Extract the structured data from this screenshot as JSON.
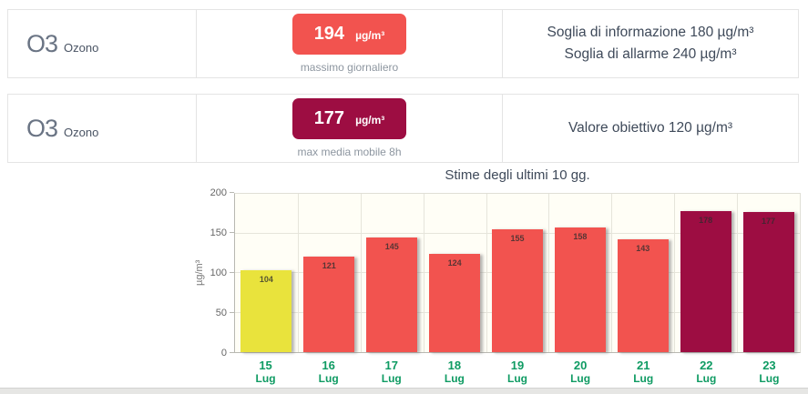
{
  "colors": {
    "red": "#f2534f",
    "dark_red": "#9d0d42",
    "yellow": "#e9e33c",
    "green": "#0f9b63",
    "text_dark": "#3f4a5a",
    "text_muted": "#8d96a0",
    "border": "#e4e4e4",
    "plot_bg": "#fffef6"
  },
  "cards": [
    {
      "pollutant": "O3",
      "name": "Ozono",
      "value": "194",
      "unit": "µg/m³",
      "caption": "massimo giornaliero",
      "badge_color": "#f2534f",
      "thresholds": [
        "Soglia di informazione 180 µg/m³",
        "Soglia di allarme 240 µg/m³"
      ]
    },
    {
      "pollutant": "O3",
      "name": "Ozono",
      "value": "177",
      "unit": "µg/m³",
      "caption": "max media mobile 8h",
      "badge_color": "#9d0d42",
      "thresholds": [
        "Valore obiettivo 120 µg/m³"
      ]
    }
  ],
  "chart_data": {
    "type": "bar",
    "title": "Stime degli ultimi 10 gg.",
    "xlabel": "",
    "ylabel": "µg/m³",
    "ylim": [
      0,
      200
    ],
    "yticks": [
      0,
      50,
      100,
      150,
      200
    ],
    "grid": true,
    "legend": false,
    "categories": [
      "15 Lug",
      "16 Lug",
      "17 Lug",
      "18 Lug",
      "19 Lug",
      "20 Lug",
      "21 Lug",
      "22 Lug",
      "23 Lug"
    ],
    "values": [
      104,
      121,
      145,
      124,
      155,
      158,
      143,
      178,
      177
    ],
    "bar_colors": [
      "#e9e33c",
      "#f2534f",
      "#f2534f",
      "#f2534f",
      "#f2534f",
      "#f2534f",
      "#f2534f",
      "#9d0d42",
      "#9d0d42"
    ],
    "label_color": "#0f9b63"
  }
}
